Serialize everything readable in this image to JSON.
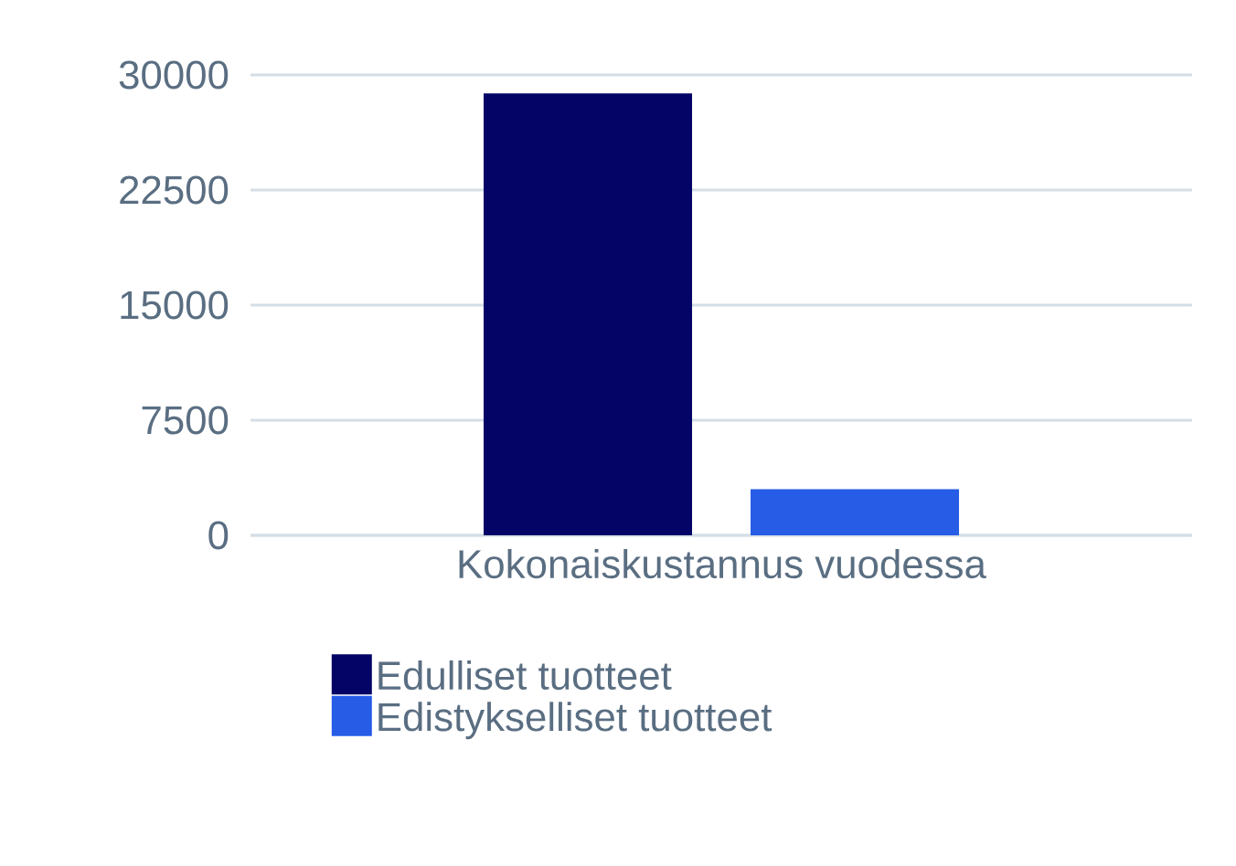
{
  "chart_data": {
    "type": "bar",
    "categories": [
      "Kokonaiskustannus vuodessa"
    ],
    "series": [
      {
        "name": "Edulliset tuotteet",
        "color": "#030466",
        "values": [
          28800
        ]
      },
      {
        "name": "Edistykselliset tuotteet",
        "color": "#265ce6",
        "values": [
          3000
        ]
      }
    ],
    "ylim": [
      0,
      30000
    ],
    "yticks": [
      0,
      7500,
      15000,
      22500,
      30000
    ],
    "grid": "y",
    "legend": "bottom"
  }
}
